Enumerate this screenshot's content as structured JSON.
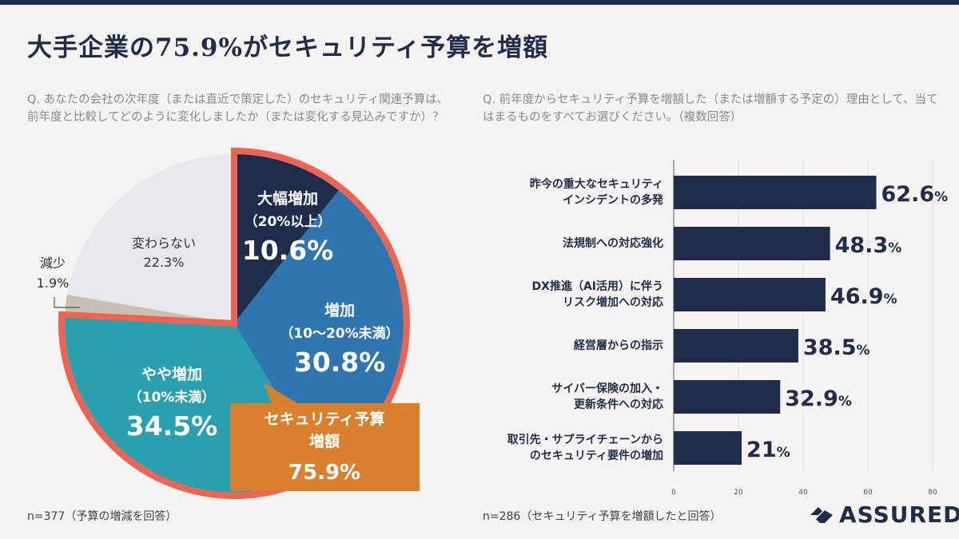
{
  "title": "大手企業の75.9%がセキュリティ予算を増額",
  "left": {
    "question": "Q. あなたの会社の次年度（または直近で策定した）のセキュリティ関連予算は、前年度と比較してどのように変化しましたか（または変化する見込みですか）？",
    "note": "n=377（予算の増減を回答）",
    "callout": {
      "line1": "セキュリティ予算",
      "line2": "増額",
      "value": "75.9%"
    }
  },
  "right": {
    "question": "Q. 前年度からセキュリティ予算を増額した（または増額する予定の）理由として、当てはまるものをすべてお選びください。（複数回答）",
    "note": "n=286（セキュリティ予算を増額したと回答）"
  },
  "logo": "ASSURED",
  "chart_data": [
    {
      "type": "pie",
      "slices": [
        {
          "label": "大幅増加",
          "sub": "（20%以上）",
          "value": 10.6,
          "color": "#1f2d4a",
          "text": "10.6%"
        },
        {
          "label": "増加",
          "sub": "（10〜20%未満）",
          "value": 30.8,
          "color": "#2f76b0",
          "text": "30.8%"
        },
        {
          "label": "やや増加",
          "sub": "（10%未満）",
          "value": 34.5,
          "color": "#2a9fae",
          "text": "34.5%"
        },
        {
          "label": "減少",
          "sub": "",
          "value": 1.9,
          "color": "#c8c0b4",
          "text": "1.9%"
        },
        {
          "label": "変わらない",
          "sub": "",
          "value": 22.3,
          "color": "#e6e8ed",
          "text": "22.3%"
        }
      ],
      "highlight_color": "#ee6352",
      "callout_color": "#d97f2e"
    },
    {
      "type": "bar",
      "orientation": "horizontal",
      "categories": [
        [
          "昨今の重大なセキュリティ",
          "インシデントの多発"
        ],
        [
          "法規制への対応強化"
        ],
        [
          "DX推進（AI活用）に伴う",
          "リスク増加への対応"
        ],
        [
          "経営層からの指示"
        ],
        [
          "サイバー保険の加入・",
          "更新条件への対応"
        ],
        [
          "取引先・サプライチェーンから",
          "のセキュリティ要件の増加"
        ]
      ],
      "values": [
        62.6,
        48.3,
        46.9,
        38.5,
        32.9,
        21
      ],
      "value_labels": [
        "62.6",
        "48.3",
        "46.9",
        "38.5",
        "32.9",
        "21"
      ],
      "unit": "%",
      "xlim": [
        0,
        80
      ],
      "xticks": [
        "0",
        "20",
        "40",
        "60",
        "80"
      ],
      "grid": true,
      "color": "#1f2d4a"
    }
  ]
}
